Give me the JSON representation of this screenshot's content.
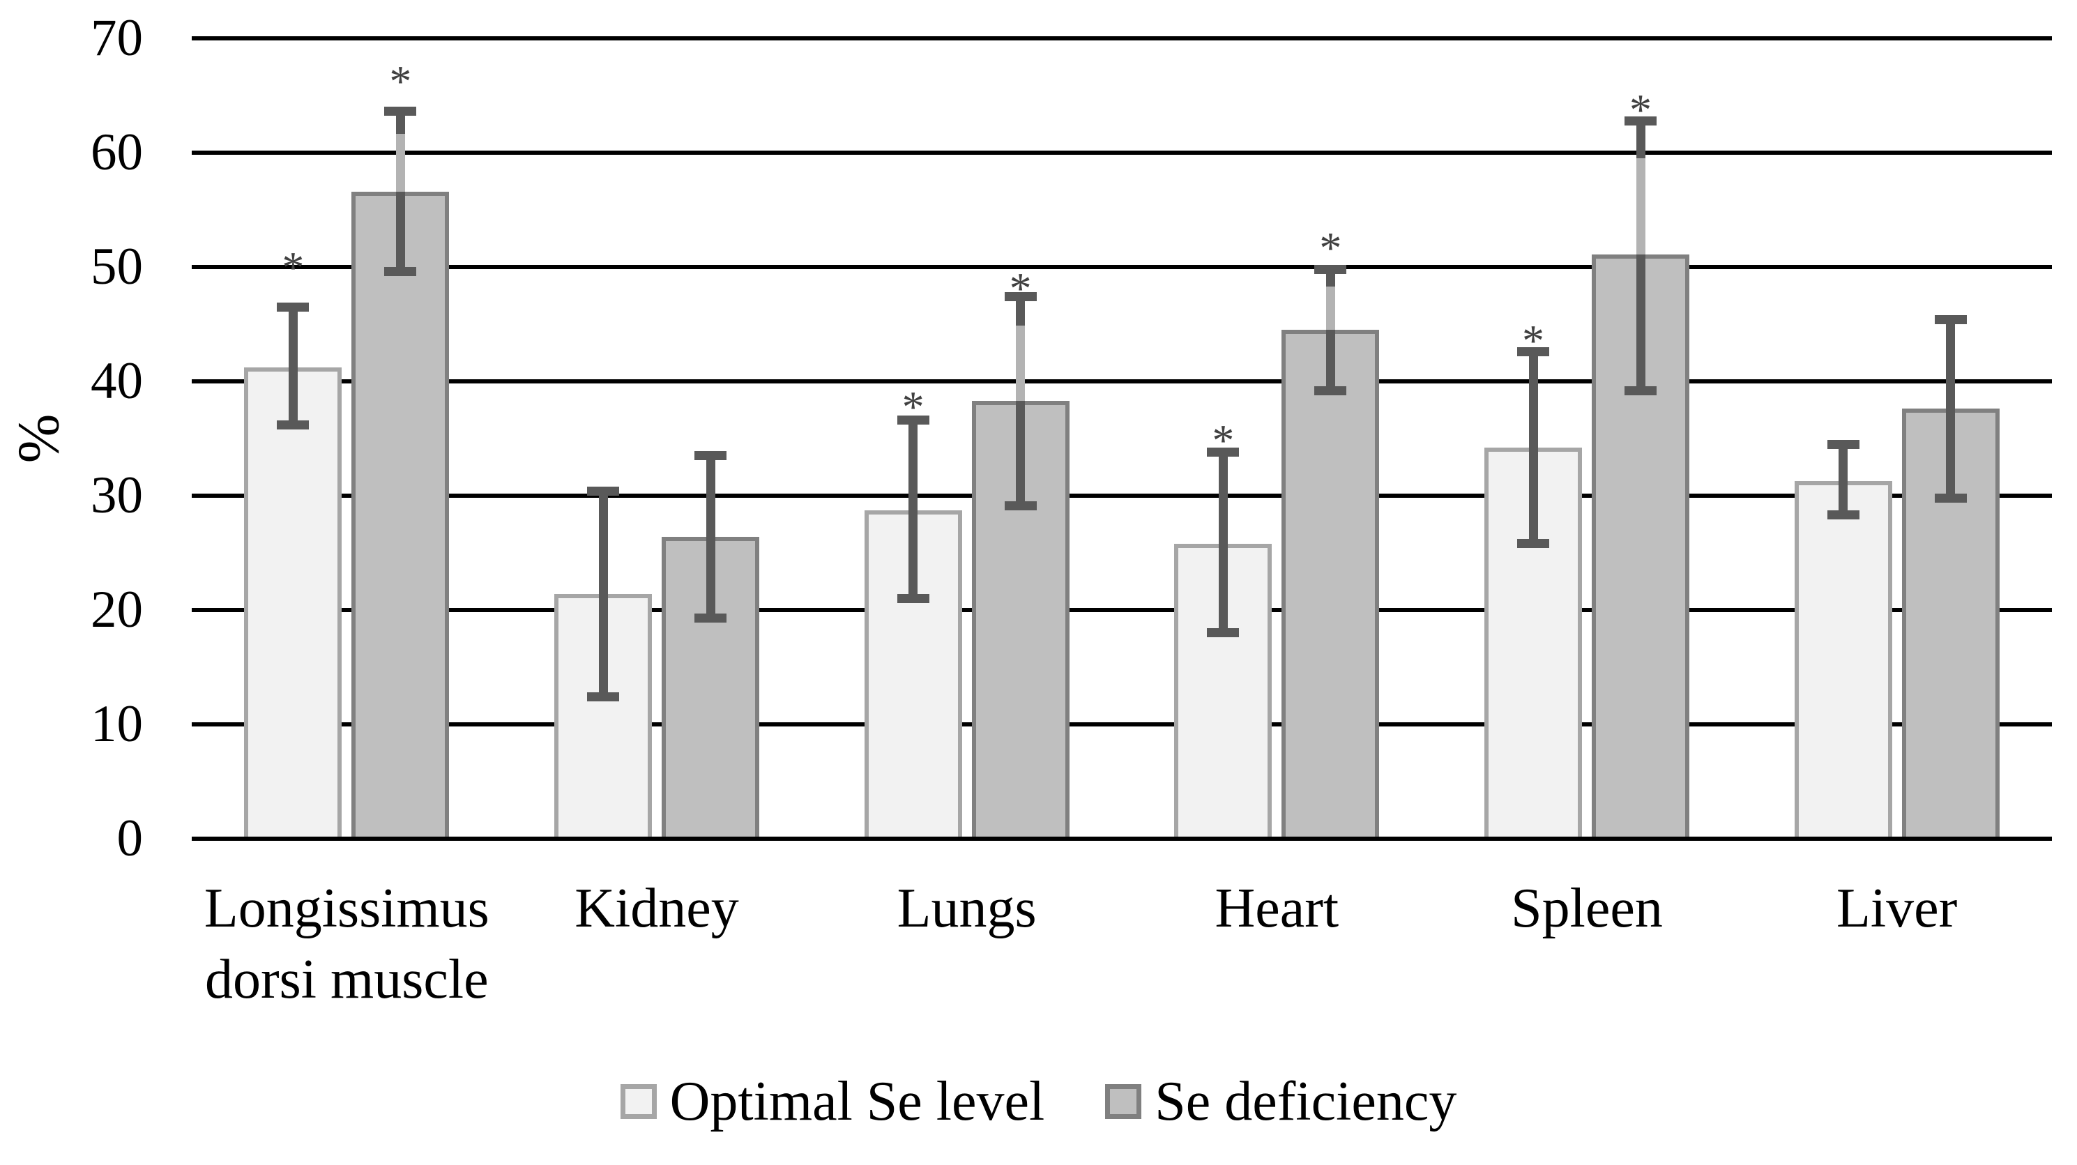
{
  "chart_data": {
    "type": "bar",
    "title": "",
    "ylabel": "%",
    "ylim": [
      0,
      70
    ],
    "yticks": [
      0,
      10,
      20,
      30,
      40,
      50,
      60,
      70
    ],
    "grid": "horizontal-on",
    "legend_position": "bottom-center",
    "significance_marker": "*",
    "categories": [
      "Longissimus\ndorsi muscle",
      "Kidney",
      "Lungs",
      "Heart",
      "Spleen",
      "Liver"
    ],
    "series": [
      {
        "name": "Optimal Se level",
        "fill": "#f2f2f2",
        "border": "#a6a6a6",
        "values": [
          41.2,
          21.4,
          28.7,
          25.8,
          34.2,
          31.3
        ],
        "err_low": [
          36.2,
          12.4,
          21.0,
          18.0,
          25.8,
          28.3
        ],
        "err_high": [
          46.5,
          30.4,
          36.6,
          33.8,
          42.6,
          34.5
        ],
        "sig_y": [
          50.6,
          null,
          38.4,
          35.5,
          44.2,
          null
        ]
      },
      {
        "name": "Se deficiency",
        "fill": "#bfbfbf",
        "border": "#808080",
        "values": [
          56.6,
          26.4,
          38.3,
          44.5,
          51.1,
          37.6
        ],
        "err_low": [
          49.6,
          19.3,
          29.1,
          39.2,
          39.2,
          29.8
        ],
        "err_high": [
          63.6,
          33.5,
          47.4,
          49.8,
          62.8,
          45.4
        ],
        "sig_y": [
          66.9,
          null,
          48.8,
          52.3,
          64.4,
          null
        ]
      }
    ],
    "error_bar_color": "#595959",
    "error_bar_light_color": "#b3b3b3",
    "gridline_color": "#000000",
    "text_color": "#000000",
    "marker_color": "#404040"
  }
}
